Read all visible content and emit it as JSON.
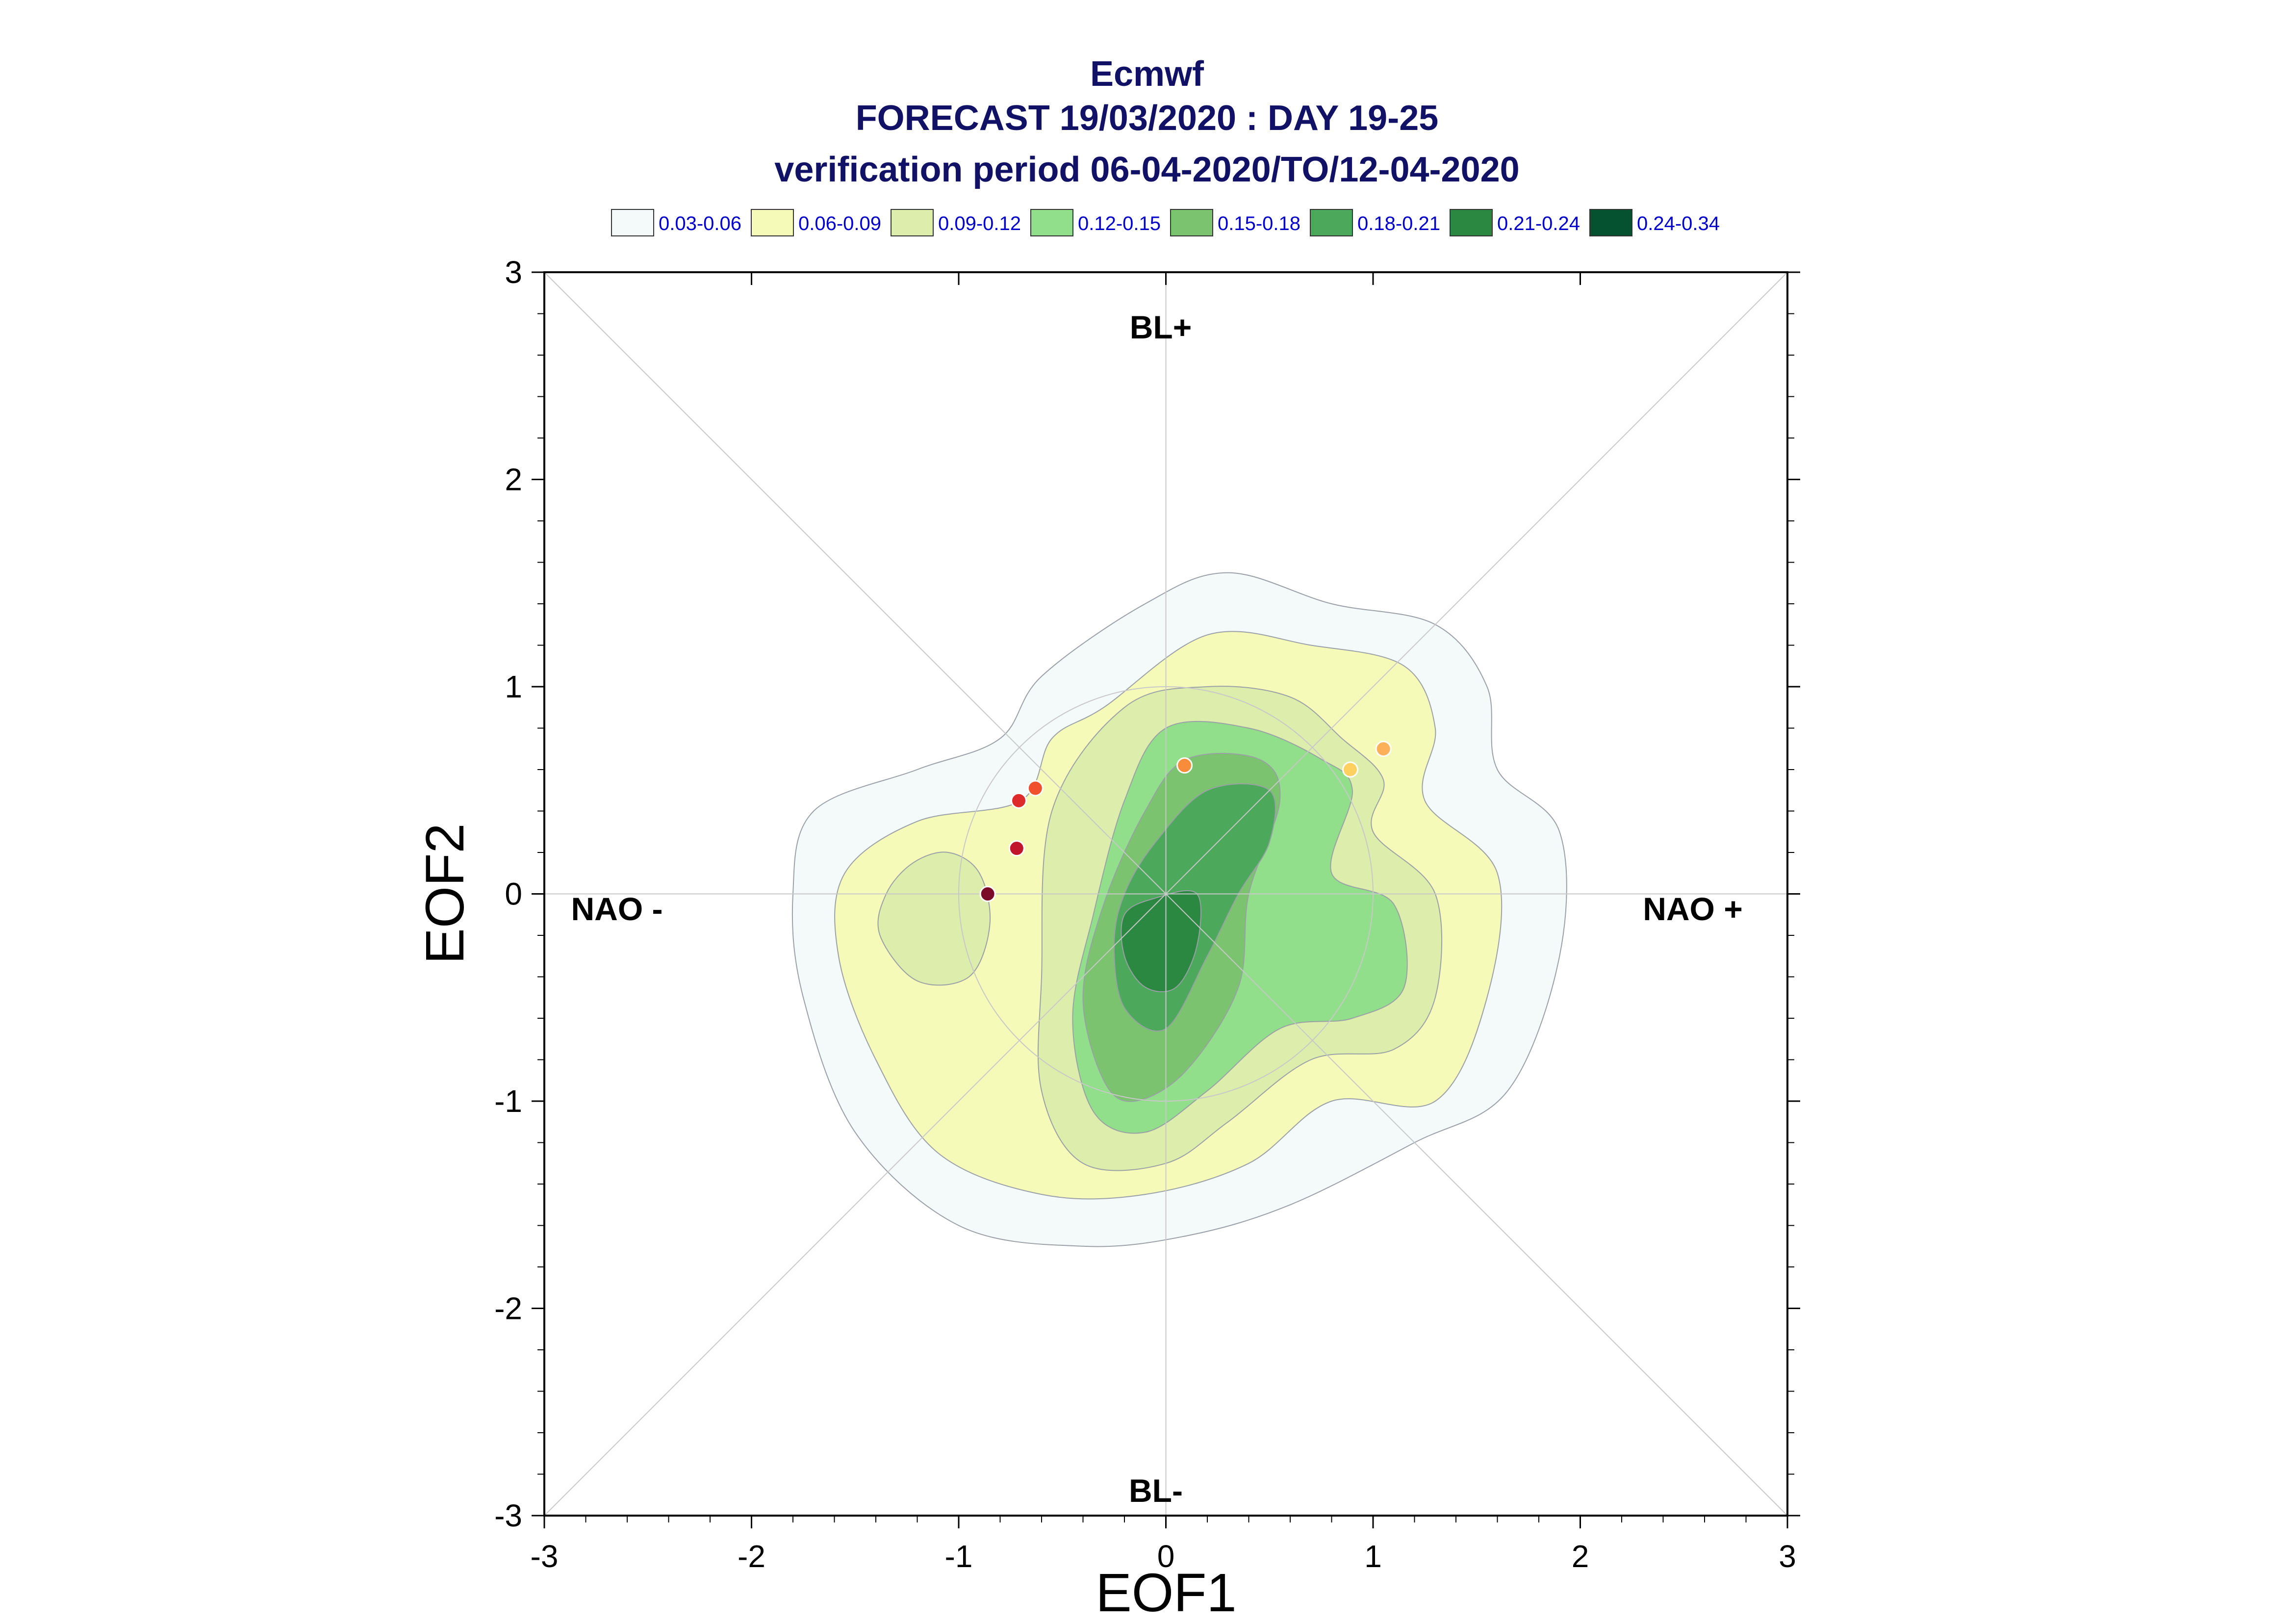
{
  "chart_data": {
    "type": "scatter",
    "title": "Ecmwf",
    "subtitle": "FORECAST 19/03/2020 : DAY 19-25",
    "subtitle2": "verification period 06-04-2020/TO/12-04-2020",
    "xlabel": "EOF1",
    "ylabel": "EOF2",
    "xlim": [
      -3,
      3
    ],
    "ylim": [
      -3,
      3
    ],
    "xticks": [
      "-3",
      "-2",
      "-1",
      "0",
      "1",
      "2",
      "3"
    ],
    "yticks": [
      "-3",
      "-2",
      "-1",
      "0",
      "1",
      "2",
      "3"
    ],
    "grid": false,
    "regime_labels": {
      "top": "BL+",
      "bottom": "BL-",
      "left": "NAO -",
      "right": "NAO +"
    },
    "legend": [
      {
        "label": "0.03-0.06",
        "color": "#f4f9fa"
      },
      {
        "label": "0.06-0.09",
        "color": "#f6fab9"
      },
      {
        "label": "0.09-0.12",
        "color": "#dcedac"
      },
      {
        "label": "0.12-0.15",
        "color": "#91df8a"
      },
      {
        "label": "0.15-0.18",
        "color": "#7cc36f"
      },
      {
        "label": "0.18-0.21",
        "color": "#4ca95b"
      },
      {
        "label": "0.21-0.24",
        "color": "#2a8841"
      },
      {
        "label": "0.24-0.34",
        "color": "#055230"
      }
    ],
    "density_contours": [
      {
        "level": "0.03-0.06",
        "color": "#f4f9fa",
        "x": [
          -0.1,
          0.3,
          0.8,
          1.3,
          1.55,
          1.6,
          1.9,
          1.9,
          1.65,
          1.2,
          0.6,
          0.1,
          -0.4,
          -1.0,
          -1.5,
          -1.75,
          -1.8,
          -1.7,
          -1.2,
          -0.8,
          -0.6
        ],
        "y": [
          1.4,
          1.55,
          1.4,
          1.3,
          1.0,
          0.6,
          0.3,
          -0.3,
          -0.95,
          -1.2,
          -1.5,
          -1.65,
          -1.7,
          -1.6,
          -1.15,
          -0.5,
          0.0,
          0.4,
          0.6,
          0.75,
          1.05
        ]
      },
      {
        "level": "0.06-0.09",
        "color": "#f6fab9",
        "x": [
          -0.3,
          0.2,
          0.7,
          1.15,
          1.3,
          1.25,
          1.6,
          1.55,
          1.3,
          0.8,
          0.4,
          -0.1,
          -0.6,
          -1.1,
          -1.4,
          -1.58,
          -1.55,
          -1.2,
          -0.7,
          -0.55
        ],
        "y": [
          0.9,
          1.25,
          1.2,
          1.1,
          0.8,
          0.45,
          0.1,
          -0.5,
          -1.0,
          -1.0,
          -1.3,
          -1.45,
          -1.45,
          -1.25,
          -0.8,
          -0.3,
          0.1,
          0.35,
          0.45,
          0.75
        ]
      },
      {
        "level": "0.09-0.12",
        "color": "#dcedac",
        "x": [
          -0.2,
          0.2,
          0.6,
          0.85,
          1.05,
          1.0,
          1.3,
          1.3,
          1.1,
          0.7,
          0.3,
          0.0,
          -0.4,
          -0.6,
          -0.6,
          -0.55
        ],
        "y": [
          0.9,
          1.0,
          0.95,
          0.75,
          0.55,
          0.3,
          0.0,
          -0.5,
          -0.75,
          -0.8,
          -1.1,
          -1.3,
          -1.3,
          -0.95,
          -0.4,
          0.4
        ]
      },
      {
        "level": "0.12-0.15",
        "color": "#91df8a",
        "x": [
          0.0,
          0.4,
          0.75,
          0.9,
          0.8,
          1.1,
          1.15,
          0.9,
          0.55,
          0.2,
          -0.1,
          -0.35,
          -0.45,
          -0.35,
          -0.2
        ],
        "y": [
          0.8,
          0.8,
          0.65,
          0.5,
          0.1,
          -0.05,
          -0.45,
          -0.6,
          -0.65,
          -0.95,
          -1.15,
          -1.05,
          -0.6,
          -0.1,
          0.45
        ]
      },
      {
        "level": "0.15-0.18",
        "color": "#7cc36f",
        "x": [
          0.1,
          0.45,
          0.55,
          0.4,
          0.35,
          0.1,
          -0.15,
          -0.3,
          -0.4,
          -0.3,
          -0.1
        ],
        "y": [
          0.65,
          0.65,
          0.45,
          0.0,
          -0.45,
          -0.85,
          -1.0,
          -0.9,
          -0.5,
          -0.05,
          0.4
        ]
      },
      {
        "level": "0.18-0.21",
        "color": "#4ca95b",
        "x": [
          0.2,
          0.5,
          0.5,
          0.35,
          0.2,
          0.0,
          -0.2,
          -0.25,
          -0.2,
          -0.05
        ],
        "y": [
          0.5,
          0.5,
          0.25,
          0.0,
          -0.3,
          -0.65,
          -0.55,
          -0.25,
          0.0,
          0.25
        ]
      },
      {
        "level": "0.21-0.24",
        "color": "#2a8841",
        "x": [
          -0.05,
          0.15,
          0.15,
          0.05,
          -0.1,
          -0.2,
          -0.2
        ],
        "y": [
          -0.02,
          0.0,
          -0.25,
          -0.45,
          -0.45,
          -0.3,
          -0.1
        ]
      },
      {
        "level": "0.09-0.12",
        "color": "#dcedac",
        "x": [
          -1.05,
          -0.9,
          -0.85,
          -0.95,
          -1.2,
          -1.38,
          -1.35,
          -1.22
        ],
        "y": [
          0.2,
          0.1,
          -0.15,
          -0.4,
          -0.42,
          -0.2,
          0.0,
          0.15
        ]
      }
    ],
    "points": [
      {
        "x": -0.86,
        "y": 0.0,
        "color": "#7a0c2a"
      },
      {
        "x": -0.72,
        "y": 0.22,
        "color": "#c0152b"
      },
      {
        "x": -0.71,
        "y": 0.45,
        "color": "#dd2a2a"
      },
      {
        "x": -0.63,
        "y": 0.51,
        "color": "#f0512c"
      },
      {
        "x": 0.09,
        "y": 0.62,
        "color": "#f78c3a"
      },
      {
        "x": 0.89,
        "y": 0.6,
        "color": "#fdd060"
      },
      {
        "x": 1.05,
        "y": 0.7,
        "color": "#fdb05a"
      }
    ]
  }
}
